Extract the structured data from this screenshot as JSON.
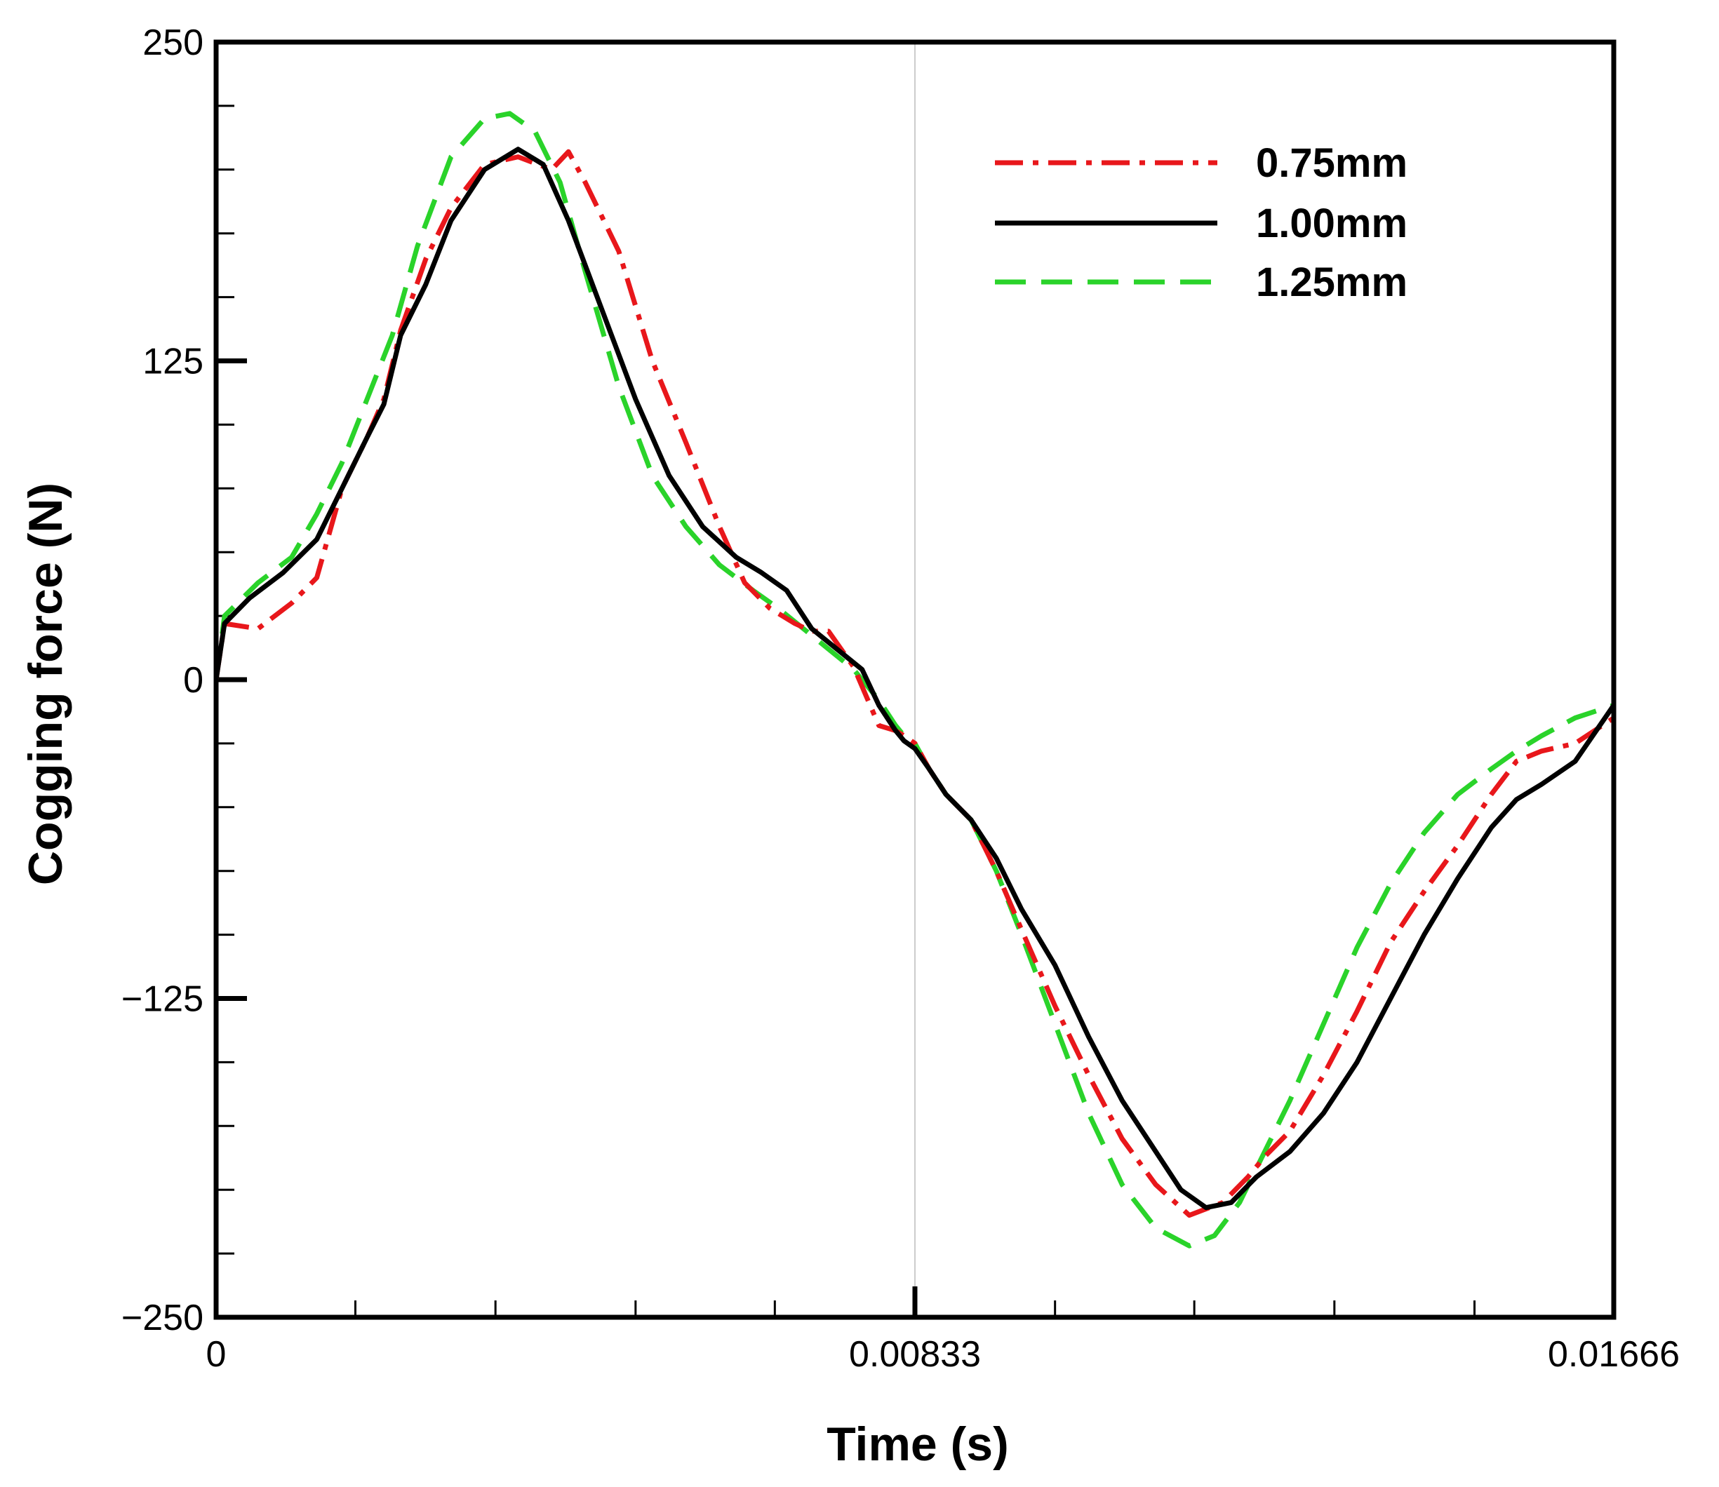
{
  "chart_data": {
    "type": "line",
    "title": "",
    "xlabel": "Time (s)",
    "ylabel": "Cogging force (N)",
    "xlim": [
      0,
      0.01666
    ],
    "ylim": [
      -250,
      250
    ],
    "x_ticks": [
      {
        "value": 0,
        "label": "0"
      },
      {
        "value": 0.00833,
        "label": "0.00833"
      },
      {
        "value": 0.01666,
        "label": "0.01666"
      }
    ],
    "y_ticks": [
      {
        "value": 250,
        "label": "250"
      },
      {
        "value": 125,
        "label": "125"
      },
      {
        "value": 0,
        "label": "0"
      },
      {
        "value": -125,
        "label": "−125"
      },
      {
        "value": -250,
        "label": "−250"
      }
    ],
    "x_minor_ticks": [
      0.00166,
      0.00333,
      0.005,
      0.00666,
      0.01,
      0.01166,
      0.01333,
      0.015
    ],
    "y_minor_ticks": [
      225,
      200,
      175,
      150,
      100,
      75,
      50,
      25,
      -25,
      -50,
      -75,
      -100,
      -150,
      -175,
      -200,
      -225
    ],
    "vertical_gridline": 0.00833,
    "legend_position": "top-right",
    "series": [
      {
        "name": "0.75mm",
        "color": "#e8171b",
        "dash": "dashdot",
        "x": [
          0,
          0.0001,
          0.0005,
          0.0009,
          0.0012,
          0.0015,
          0.0018,
          0.002,
          0.0022,
          0.0025,
          0.0028,
          0.0032,
          0.0036,
          0.004,
          0.0042,
          0.0044,
          0.0048,
          0.0052,
          0.0056,
          0.006,
          0.0063,
          0.0066,
          0.0069,
          0.0071,
          0.0073,
          0.0076,
          0.0079,
          0.0081,
          0.0082,
          0.00833,
          0.0085,
          0.0087,
          0.009,
          0.0093,
          0.0096,
          0.01,
          0.0104,
          0.0108,
          0.0112,
          0.0116,
          0.012,
          0.0123,
          0.0125,
          0.0128,
          0.0132,
          0.0136,
          0.014,
          0.0144,
          0.0148,
          0.0152,
          0.0155,
          0.0158,
          0.0162,
          0.01666
        ],
        "y": [
          0,
          22,
          20,
          30,
          40,
          75,
          95,
          110,
          137,
          165,
          185,
          202,
          205,
          200,
          207,
          195,
          168,
          125,
          93,
          60,
          38,
          28,
          22,
          19,
          19,
          5,
          -18,
          -20,
          -22,
          -25,
          -35,
          -45,
          -55,
          -75,
          -98,
          -128,
          -155,
          -180,
          -198,
          -210,
          -205,
          -195,
          -187,
          -177,
          -155,
          -130,
          -103,
          -83,
          -65,
          -45,
          -32,
          -28,
          -25,
          -15
        ]
      },
      {
        "name": "1.00mm",
        "color": "#000000",
        "dash": "solid",
        "x": [
          0,
          0.0001,
          0.0004,
          0.0008,
          0.0012,
          0.0015,
          0.0018,
          0.002,
          0.0022,
          0.0025,
          0.0028,
          0.0032,
          0.0036,
          0.0039,
          0.0042,
          0.0046,
          0.005,
          0.0054,
          0.0058,
          0.0062,
          0.0065,
          0.0068,
          0.0071,
          0.0074,
          0.0077,
          0.0079,
          0.0081,
          0.0082,
          0.00833,
          0.0085,
          0.0087,
          0.009,
          0.0093,
          0.0096,
          0.01,
          0.0104,
          0.0108,
          0.0112,
          0.0115,
          0.0118,
          0.0121,
          0.0124,
          0.0128,
          0.0132,
          0.0136,
          0.014,
          0.0144,
          0.0148,
          0.0152,
          0.0155,
          0.0158,
          0.0162,
          0.01666
        ],
        "y": [
          0,
          22,
          32,
          42,
          55,
          75,
          95,
          108,
          135,
          155,
          180,
          200,
          208,
          202,
          180,
          145,
          110,
          80,
          60,
          48,
          42,
          35,
          20,
          12,
          4,
          -10,
          -20,
          -24,
          -27,
          -35,
          -45,
          -55,
          -70,
          -90,
          -112,
          -140,
          -165,
          -185,
          -200,
          -207,
          -205,
          -195,
          -185,
          -170,
          -150,
          -125,
          -100,
          -78,
          -58,
          -47,
          -41,
          -32,
          -10
        ]
      },
      {
        "name": "1.25mm",
        "color": "#2ad32a",
        "dash": "dashed",
        "x": [
          0,
          0.0001,
          0.0005,
          0.0009,
          0.0012,
          0.0015,
          0.0018,
          0.0021,
          0.0024,
          0.0028,
          0.0032,
          0.0035,
          0.0038,
          0.0041,
          0.0044,
          0.0048,
          0.0052,
          0.0056,
          0.006,
          0.0064,
          0.0067,
          0.007,
          0.0073,
          0.0076,
          0.0079,
          0.0081,
          0.0082,
          0.00833,
          0.0085,
          0.0087,
          0.009,
          0.0093,
          0.0096,
          0.01,
          0.0104,
          0.0108,
          0.0112,
          0.0116,
          0.0119,
          0.0122,
          0.0125,
          0.0128,
          0.0132,
          0.0136,
          0.014,
          0.0144,
          0.0148,
          0.0152,
          0.0155,
          0.0158,
          0.0162,
          0.01666
        ],
        "y": [
          0,
          25,
          38,
          48,
          65,
          85,
          110,
          135,
          170,
          205,
          220,
          222,
          215,
          195,
          160,
          115,
          80,
          60,
          45,
          35,
          28,
          20,
          12,
          4,
          -8,
          -18,
          -22,
          -25,
          -35,
          -45,
          -55,
          -75,
          -100,
          -135,
          -170,
          -198,
          -215,
          -222,
          -218,
          -205,
          -185,
          -165,
          -135,
          -105,
          -80,
          -60,
          -45,
          -35,
          -28,
          -22,
          -15,
          -10
        ]
      }
    ]
  }
}
